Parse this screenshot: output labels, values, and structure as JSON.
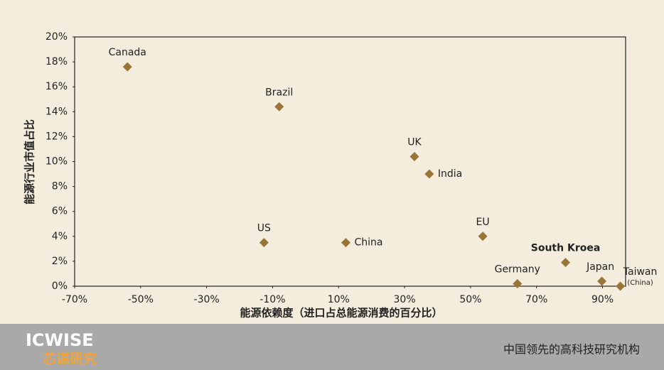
{
  "chart_data": {
    "type": "scatter",
    "x_label": "能源依赖度（进口占总能源消费的百分比）",
    "y_label": "能源行业市值占比",
    "color": "#9a7437",
    "xlim": [
      -70,
      97
    ],
    "ylim": [
      0,
      20
    ],
    "xticks": [
      {
        "value": -70,
        "label": "-70%"
      },
      {
        "value": -50,
        "label": "-50%"
      },
      {
        "value": -30,
        "label": "-30%"
      },
      {
        "value": -10,
        "label": "-10%"
      },
      {
        "value": 10,
        "label": "10%"
      },
      {
        "value": 30,
        "label": "30%"
      },
      {
        "value": 50,
        "label": "50%"
      },
      {
        "value": 70,
        "label": "70%"
      },
      {
        "value": 90,
        "label": "90%"
      }
    ],
    "yticks": [
      {
        "value": 0,
        "label": "0%"
      },
      {
        "value": 2,
        "label": "2%"
      },
      {
        "value": 4,
        "label": "4%"
      },
      {
        "value": 6,
        "label": "6%"
      },
      {
        "value": 8,
        "label": "8%"
      },
      {
        "value": 10,
        "label": "10%"
      },
      {
        "value": 12,
        "label": "12%"
      },
      {
        "value": 14,
        "label": "14%"
      },
      {
        "value": 16,
        "label": "16%"
      },
      {
        "value": 18,
        "label": "18%"
      },
      {
        "value": 20,
        "label": "20%"
      }
    ],
    "points": [
      {
        "label": "Canada",
        "x": -54,
        "y": 17.6
      },
      {
        "label": "Brazil",
        "x": -8,
        "y": 14.4
      },
      {
        "label": "UK",
        "x": 33,
        "y": 10.4
      },
      {
        "label": "India",
        "x": 37.5,
        "y": 9.0
      },
      {
        "label": "EU",
        "x": 53.7,
        "y": 4.0
      },
      {
        "label": "US",
        "x": -12.6,
        "y": 3.5
      },
      {
        "label": "China",
        "x": 12.2,
        "y": 3.5
      },
      {
        "label": "South Kroea",
        "x": 78.8,
        "y": 1.9
      },
      {
        "label": "Germany",
        "x": 64.2,
        "y": 0.2
      },
      {
        "label": "Japan",
        "x": 89.8,
        "y": 0.4
      },
      {
        "label": "Taiwan",
        "sublabel": "(China)",
        "x": 95.4,
        "y": 0
      }
    ]
  },
  "footer": {
    "logo_top": "ICWISE",
    "logo_bottom": "芯谋研究",
    "slogan": "中国领先的高科技研究机构"
  }
}
